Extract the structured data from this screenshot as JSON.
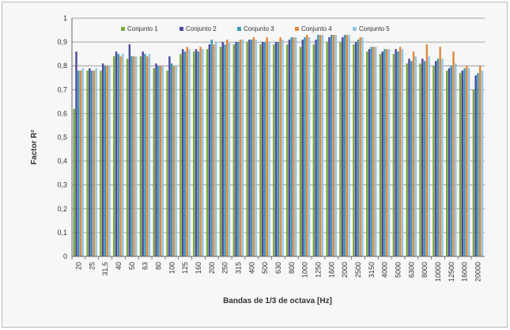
{
  "chart_data": {
    "type": "bar",
    "title": "",
    "xlabel": "Bandas de 1/3 de octava [Hz]",
    "ylabel": "Factor R²",
    "ylim": [
      0,
      1
    ],
    "yticks": [
      "0",
      "0,1",
      "0,2",
      "0,3",
      "0,4",
      "0,5",
      "0,6",
      "0,7",
      "0,8",
      "0,9",
      "1"
    ],
    "grid": "horizontal",
    "legend_position": "top",
    "categories": [
      "20",
      "25",
      "31,5",
      "40",
      "50",
      "63",
      "80",
      "100",
      "125",
      "160",
      "200",
      "250",
      "315",
      "400",
      "500",
      "630",
      "800",
      "1000",
      "1250",
      "1600",
      "2000",
      "2500",
      "3150",
      "4000",
      "5000",
      "6300",
      "8000",
      "10000",
      "12500",
      "16000",
      "20000"
    ],
    "series": [
      {
        "name": "Conjunto 1",
        "color": "#7aa83c",
        "values": [
          0.62,
          0.78,
          0.78,
          0.84,
          0.83,
          0.84,
          0.79,
          0.78,
          0.85,
          0.86,
          0.87,
          0.88,
          0.89,
          0.9,
          0.89,
          0.89,
          0.89,
          0.88,
          0.89,
          0.9,
          0.9,
          0.89,
          0.86,
          0.85,
          0.85,
          0.81,
          0.81,
          0.8,
          0.78,
          0.77,
          0.7
        ]
      },
      {
        "name": "Conjunto 2",
        "color": "#4e4a9e",
        "values": [
          0.86,
          0.79,
          0.81,
          0.86,
          0.89,
          0.86,
          0.81,
          0.84,
          0.87,
          0.87,
          0.89,
          0.9,
          0.9,
          0.91,
          0.9,
          0.9,
          0.91,
          0.91,
          0.91,
          0.92,
          0.92,
          0.9,
          0.87,
          0.86,
          0.87,
          0.83,
          0.83,
          0.82,
          0.79,
          0.78,
          0.76
        ]
      },
      {
        "name": "Conjunto 3",
        "color": "#3d99b8",
        "values": [
          0.78,
          0.78,
          0.8,
          0.85,
          0.84,
          0.85,
          0.8,
          0.81,
          0.86,
          0.86,
          0.91,
          0.89,
          0.9,
          0.91,
          0.9,
          0.9,
          0.92,
          0.92,
          0.93,
          0.93,
          0.93,
          0.91,
          0.88,
          0.87,
          0.86,
          0.82,
          0.82,
          0.83,
          0.8,
          0.79,
          0.77
        ]
      },
      {
        "name": "Conjunto 4",
        "color": "#e08a3c",
        "values": [
          0.78,
          0.78,
          0.8,
          0.84,
          0.84,
          0.84,
          0.8,
          0.8,
          0.88,
          0.88,
          0.89,
          0.91,
          0.91,
          0.92,
          0.92,
          0.92,
          0.92,
          0.93,
          0.93,
          0.93,
          0.93,
          0.92,
          0.88,
          0.87,
          0.88,
          0.86,
          0.89,
          0.88,
          0.86,
          0.8,
          0.8
        ]
      },
      {
        "name": "Conjunto 5",
        "color": "#8fc6e8",
        "values": [
          0.79,
          0.79,
          0.8,
          0.85,
          0.84,
          0.85,
          0.8,
          0.8,
          0.87,
          0.87,
          0.9,
          0.9,
          0.91,
          0.91,
          0.9,
          0.91,
          0.92,
          0.92,
          0.93,
          0.93,
          0.93,
          0.92,
          0.88,
          0.87,
          0.87,
          0.84,
          0.84,
          0.83,
          0.81,
          0.79,
          0.78
        ]
      }
    ]
  }
}
